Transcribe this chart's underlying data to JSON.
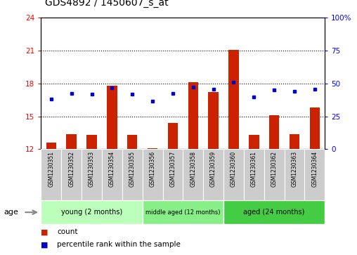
{
  "title": "GDS4892 / 1450607_s_at",
  "samples": [
    "GSM1230351",
    "GSM1230352",
    "GSM1230353",
    "GSM1230354",
    "GSM1230355",
    "GSM1230356",
    "GSM1230357",
    "GSM1230358",
    "GSM1230359",
    "GSM1230360",
    "GSM1230361",
    "GSM1230362",
    "GSM1230363",
    "GSM1230364"
  ],
  "bar_values": [
    12.6,
    13.4,
    13.3,
    17.8,
    13.3,
    12.1,
    14.4,
    18.1,
    17.2,
    21.1,
    13.3,
    15.1,
    13.4,
    15.8
  ],
  "dot_values": [
    16.6,
    17.1,
    17.0,
    17.6,
    17.0,
    16.4,
    17.1,
    17.7,
    17.5,
    18.1,
    16.8,
    17.4,
    17.3,
    17.5
  ],
  "bar_color": "#cc2200",
  "dot_color": "#0000cc",
  "bar_bottom": 12,
  "ylim_left": [
    12,
    24
  ],
  "ylim_right": [
    0,
    100
  ],
  "yticks_left": [
    12,
    15,
    18,
    21,
    24
  ],
  "yticks_right": [
    0,
    25,
    50,
    75,
    100
  ],
  "groups": [
    {
      "label": "young (2 months)",
      "start": 0,
      "end": 5,
      "color": "#bbffbb"
    },
    {
      "label": "middle aged (12 months)",
      "start": 5,
      "end": 9,
      "color": "#88ee88"
    },
    {
      "label": "aged (24 months)",
      "start": 9,
      "end": 14,
      "color": "#44cc44"
    }
  ],
  "age_label": "age",
  "legend_count_label": "count",
  "legend_pct_label": "percentile rank within the sample",
  "background_color": "#ffffff",
  "plot_bg_color": "#ffffff",
  "grid_color": "#000000",
  "sample_area_color": "#cccccc",
  "title_fontsize": 10,
  "tick_fontsize": 7.5,
  "label_fontsize": 8
}
